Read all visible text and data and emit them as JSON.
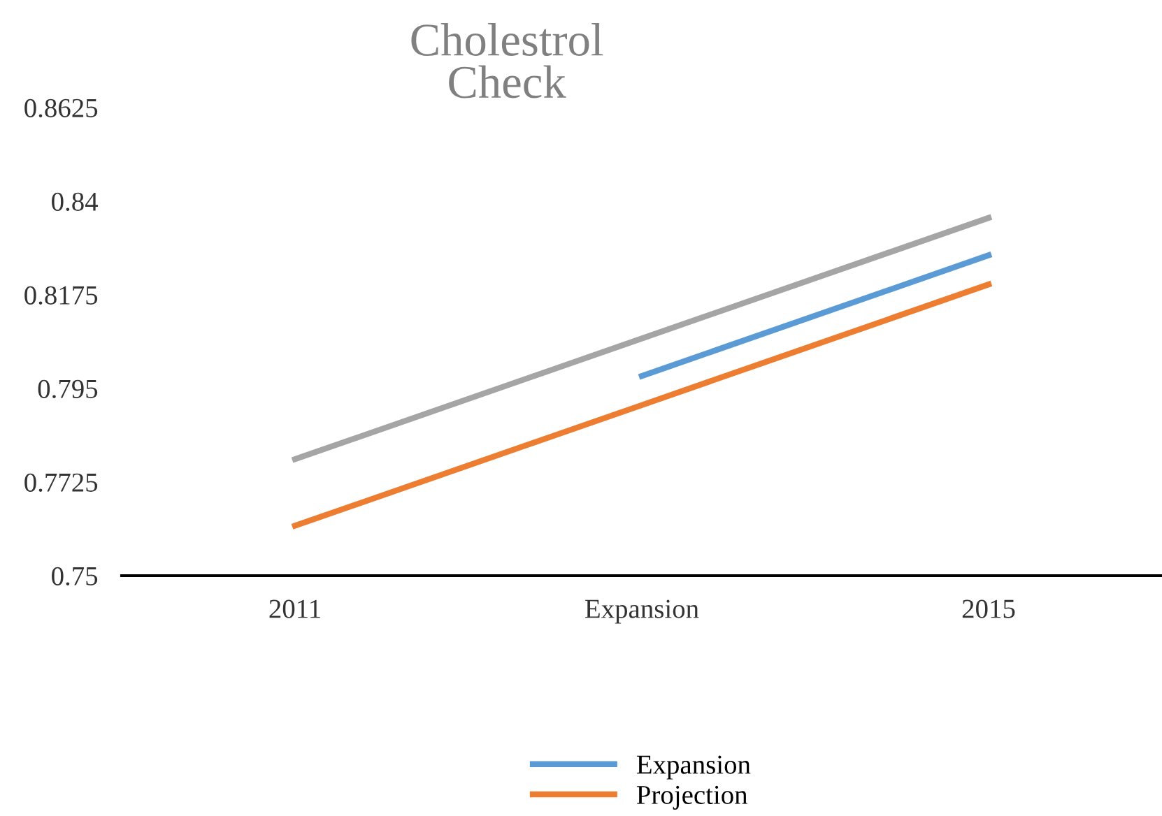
{
  "chart_data": {
    "type": "line",
    "title": "Cholestrol\nCheck",
    "categories": [
      "2011",
      "Expansion",
      "2015"
    ],
    "series": [
      {
        "color": "#a5a5a5",
        "values": [
          0.778,
          0.807,
          0.836
        ]
      },
      {
        "name": "Expansion",
        "color": "#5b9bd5",
        "values": [
          null,
          0.798,
          0.827
        ]
      },
      {
        "name": "Projection",
        "color": "#ed7d31",
        "values": [
          0.762,
          0.791,
          0.82
        ]
      }
    ],
    "ylim": [
      0.75,
      0.8625
    ],
    "yticks": [
      0.75,
      0.7725,
      0.795,
      0.8175,
      0.84,
      0.8625
    ],
    "grid": false,
    "legend": "bottom",
    "marker": "none",
    "line_style": "solid"
  }
}
